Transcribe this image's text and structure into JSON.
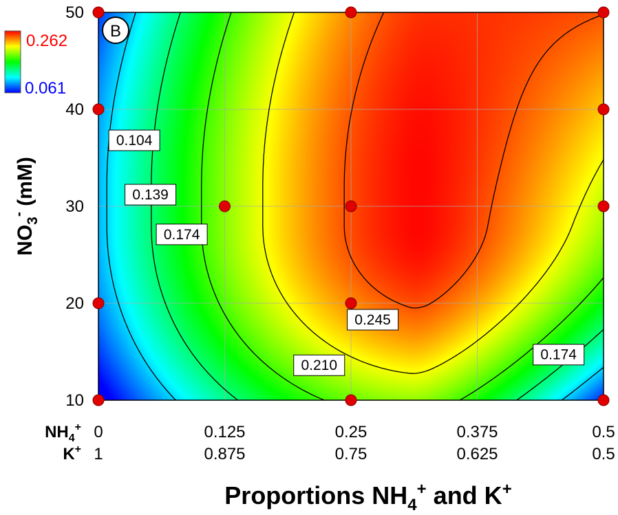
{
  "chart_data": {
    "type": "heatmap",
    "panel_label": "B",
    "x_axis": {
      "title_prefix": "Proportions NH",
      "title_sub": "4",
      "title_sup": "+",
      "title_mid": " and K",
      "title_sup2": "+",
      "rows": [
        {
          "label": "NH",
          "label_sub": "4",
          "label_sup": "+",
          "ticks": [
            "0",
            "0.125",
            "0.25",
            "0.375",
            "0.5"
          ]
        },
        {
          "label": "K",
          "label_sub": "",
          "label_sup": "+",
          "ticks": [
            "1",
            "0.875",
            "0.75",
            "0.625",
            "0.5"
          ]
        }
      ],
      "tick_values": [
        0,
        0.125,
        0.25,
        0.375,
        0.5
      ],
      "range": [
        0,
        0.5
      ]
    },
    "y_axis": {
      "title_prefix": "NO",
      "title_sub": "3",
      "title_sup": "-",
      "title_suffix": " (mM)",
      "ticks": [
        "10",
        "20",
        "30",
        "40",
        "50"
      ],
      "tick_values": [
        10,
        20,
        30,
        40,
        50
      ],
      "range": [
        10,
        50
      ]
    },
    "colorbar": {
      "max_label": "0.262",
      "min_label": "0.061",
      "max": 0.262,
      "min": 0.061,
      "max_color": "#ff0000",
      "min_color": "#0000ff"
    },
    "contour_levels": [
      0.104,
      0.139,
      0.174,
      0.21,
      0.245
    ],
    "contour_labels": [
      {
        "text": "0.104",
        "x": 0.0355,
        "y": 36.8
      },
      {
        "text": "0.139",
        "x": 0.0515,
        "y": 31.2
      },
      {
        "text": "0.174",
        "x": 0.0825,
        "y": 27.1
      },
      {
        "text": "0.210",
        "x": 0.2185,
        "y": 13.6
      },
      {
        "text": "0.245",
        "x": 0.2715,
        "y": 18.3
      },
      {
        "text": "0.174",
        "x": 0.4555,
        "y": 14.7
      }
    ],
    "design_points": [
      {
        "x": 0,
        "y": 50
      },
      {
        "x": 0.25,
        "y": 50
      },
      {
        "x": 0.5,
        "y": 50
      },
      {
        "x": 0,
        "y": 40
      },
      {
        "x": 0.5,
        "y": 40
      },
      {
        "x": 0.125,
        "y": 30
      },
      {
        "x": 0.25,
        "y": 30
      },
      {
        "x": 0.5,
        "y": 30
      },
      {
        "x": 0,
        "y": 20
      },
      {
        "x": 0.25,
        "y": 20
      },
      {
        "x": 0,
        "y": 10
      },
      {
        "x": 0.25,
        "y": 10
      },
      {
        "x": 0.5,
        "y": 10
      }
    ],
    "grid": true,
    "point_color": "#e00000",
    "colormap": [
      "#0028e6",
      "#00ffff",
      "#00ee00",
      "#ffff00",
      "#ff0000"
    ]
  }
}
